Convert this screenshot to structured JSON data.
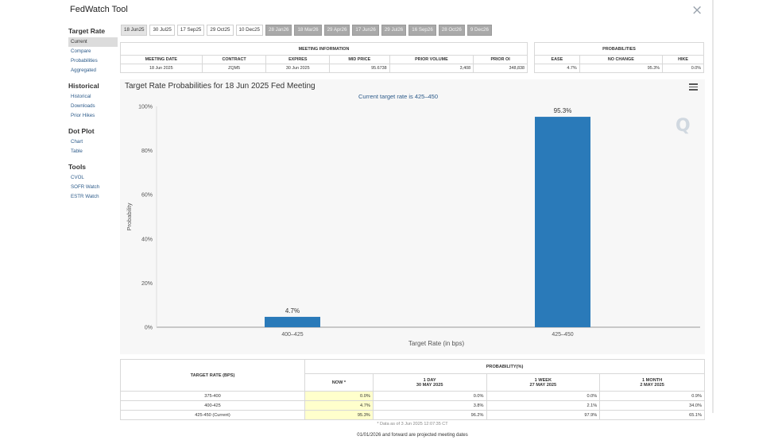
{
  "app": {
    "title": "FedWatch Tool",
    "close_icon": "×"
  },
  "sidebar": [
    {
      "heading": "Target Rate",
      "items": [
        "Current",
        "Compare",
        "Probabilities",
        "Aggregated"
      ]
    },
    {
      "heading": "Historical",
      "items": [
        "Historical",
        "Downloads",
        "Prior Hikes"
      ]
    },
    {
      "heading": "Dot Plot",
      "items": [
        "Chart",
        "Table"
      ]
    },
    {
      "heading": "Tools",
      "items": [
        "CVOL",
        "SOFR Watch",
        "ESTR Watch"
      ]
    }
  ],
  "tabs": [
    "18 Jun25",
    "30 Jul25",
    "17 Sep25",
    "29 Oct25",
    "10 Dec25",
    "28 Jan26",
    "18 Mar26",
    "29 Apr26",
    "17 Jun26",
    "29 Jul26",
    "16 Sep26",
    "28 Oct26",
    "9 Dec26"
  ],
  "meeting_info": {
    "header": "MEETING INFORMATION",
    "columns": [
      "MEETING DATE",
      "CONTRACT",
      "EXPIRES",
      "MID PRICE",
      "PRIOR VOLUME",
      "PRIOR OI"
    ],
    "row": [
      "18 Jun 2025",
      "ZQM5",
      "30 Jun 2025",
      "95.6738",
      "3,408",
      "348,838"
    ]
  },
  "probabilities": {
    "header": "PROBABILITIES",
    "columns": [
      "EASE",
      "NO CHANGE",
      "HIKE"
    ],
    "row": [
      "4.7%",
      "95.3%",
      "0.0%"
    ]
  },
  "chart": {
    "title": "Target Rate Probabilities for 18 Jun 2025 Fed Meeting",
    "subtitle": "Current target rate is 425–450",
    "menu_icon": "hamburger-icon",
    "watermark": "Q"
  },
  "chart_data": {
    "type": "bar",
    "title": "Target Rate Probabilities for 18 Jun 2025 Fed Meeting",
    "categories": [
      "400–425",
      "425–450"
    ],
    "values": [
      4.7,
      95.3
    ],
    "data_labels": [
      "4.7%",
      "95.3%"
    ],
    "xlabel": "Target Rate (in bps)",
    "ylabel": "Probability",
    "ylim": [
      0,
      100
    ],
    "yticks": [
      "0%",
      "20%",
      "40%",
      "60%",
      "80%",
      "100%"
    ],
    "bar_color": "#2a7ab9",
    "grid": false
  },
  "prob_table": {
    "col_target": "TARGET RATE (BPS)",
    "group_header": "PROBABILITY(%)",
    "periods": [
      {
        "line1": "NOW *",
        "line2": ""
      },
      {
        "line1": "1 DAY",
        "line2": "30 MAY 2025"
      },
      {
        "line1": "1 WEEK",
        "line2": "27 MAY 2025"
      },
      {
        "line1": "1 MONTH",
        "line2": "2 MAY 2025"
      }
    ],
    "rows": [
      {
        "rate": "375-400",
        "values": [
          "0.0%",
          "0.0%",
          "0.0%",
          "0.9%"
        ]
      },
      {
        "rate": "400-425",
        "values": [
          "4.7%",
          "3.8%",
          "2.1%",
          "34.0%"
        ]
      },
      {
        "rate": "425-450 (Current)",
        "values": [
          "95.3%",
          "96.2%",
          "97.9%",
          "65.1%"
        ]
      }
    ],
    "footnote": "* Data as of 3 Jun 2025 12:07:35 CT"
  },
  "bottom_note": "01/01/2026 and forward are projected meeting dates",
  "colors": {
    "bar": "#2a7ab9",
    "now_highlight": "#ffffcc",
    "future_tab": "#a9a9a9"
  }
}
